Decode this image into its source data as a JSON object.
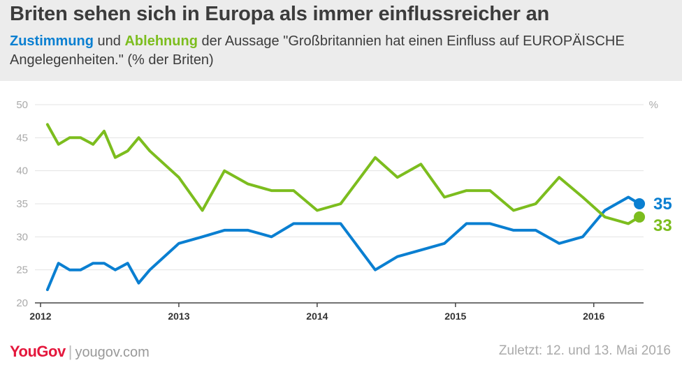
{
  "header": {
    "title": "Briten sehen sich in Europa als immer einflussreicher an",
    "subtitle_zustimmung": "Zustimmung",
    "subtitle_und": " und ",
    "subtitle_ablehnung": "Ablehnung",
    "subtitle_rest": " der Aussage \"Großbritannien hat einen Einfluss auf EUROPÄISCHE Angelegenheiten.\" (% der Briten)"
  },
  "footer": {
    "brand": "YouGov",
    "separator": "|",
    "site": "yougov.com",
    "note": "Zuletzt: 12. und 13. Mai 2016"
  },
  "chart_data": {
    "type": "line",
    "unit_label": "%",
    "ylim": [
      20,
      50
    ],
    "yticks": [
      20,
      25,
      30,
      35,
      40,
      45,
      50
    ],
    "xlim": [
      2012.0,
      2016.35
    ],
    "xticks": [
      {
        "value": 2012,
        "label": "2012"
      },
      {
        "value": 2013,
        "label": "2013"
      },
      {
        "value": 2014,
        "label": "2014"
      },
      {
        "value": 2015,
        "label": "2015"
      },
      {
        "value": 2016,
        "label": "2016"
      }
    ],
    "grid": true,
    "series": [
      {
        "name": "Zustimmung",
        "color": "#0a7fd1",
        "end_label": "35",
        "x": [
          2012.05,
          2012.13,
          2012.21,
          2012.29,
          2012.38,
          2012.46,
          2012.54,
          2012.63,
          2012.71,
          2012.79,
          2013.0,
          2013.17,
          2013.33,
          2013.5,
          2013.67,
          2013.83,
          2014.0,
          2014.17,
          2014.42,
          2014.58,
          2014.75,
          2014.92,
          2015.08,
          2015.25,
          2015.42,
          2015.58,
          2015.75,
          2015.92,
          2016.08,
          2016.25,
          2016.33
        ],
        "y": [
          22,
          26,
          25,
          25,
          26,
          26,
          25,
          26,
          23,
          25,
          29,
          30,
          31,
          31,
          30,
          32,
          32,
          32,
          25,
          27,
          28,
          29,
          32,
          32,
          31,
          31,
          29,
          30,
          34,
          36,
          35
        ]
      },
      {
        "name": "Ablehnung",
        "color": "#7cbd1e",
        "end_label": "33",
        "x": [
          2012.05,
          2012.13,
          2012.21,
          2012.29,
          2012.38,
          2012.46,
          2012.54,
          2012.63,
          2012.71,
          2012.79,
          2013.0,
          2013.17,
          2013.33,
          2013.5,
          2013.67,
          2013.83,
          2014.0,
          2014.17,
          2014.42,
          2014.58,
          2014.75,
          2014.92,
          2015.08,
          2015.25,
          2015.42,
          2015.58,
          2015.75,
          2015.92,
          2016.08,
          2016.25,
          2016.33
        ],
        "y": [
          47,
          44,
          45,
          45,
          44,
          46,
          42,
          43,
          45,
          43,
          39,
          34,
          40,
          38,
          37,
          37,
          34,
          35,
          42,
          39,
          41,
          36,
          37,
          37,
          34,
          35,
          39,
          36,
          33,
          32,
          33
        ]
      }
    ]
  }
}
